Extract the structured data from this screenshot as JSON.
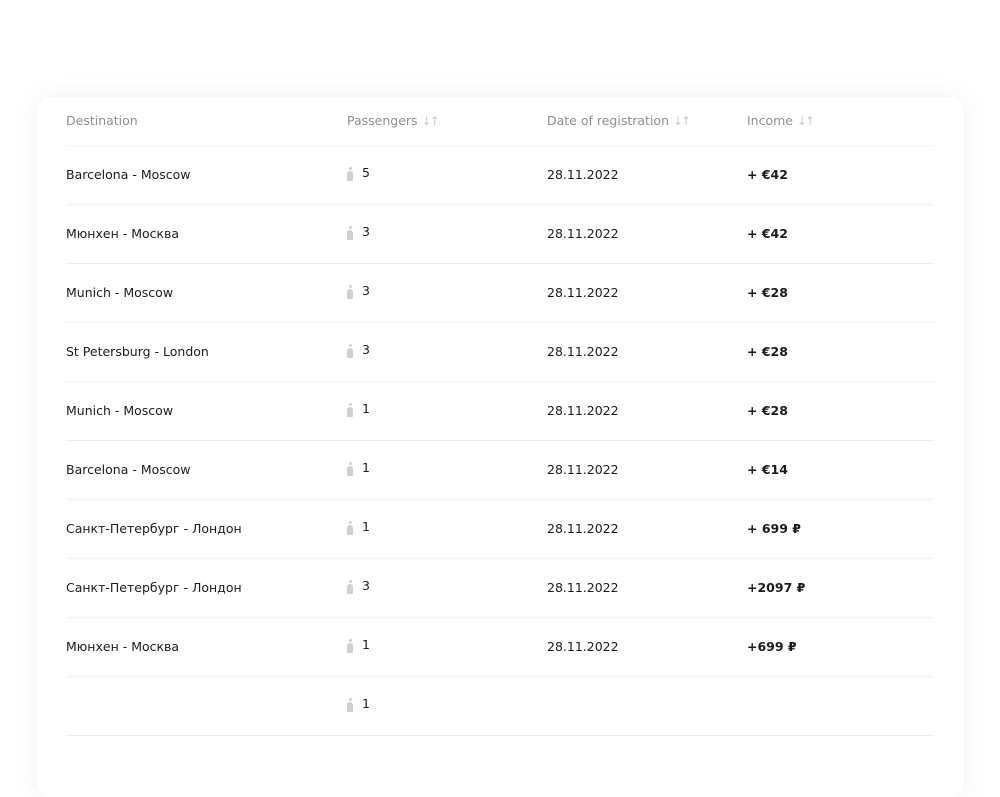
{
  "columns": [
    "Destination",
    "Passengers",
    "Date of registration",
    "Income"
  ],
  "rows": [
    {
      "destination": "Barcelona - Moscow",
      "passengers": "5",
      "date": "28.11.2022",
      "income": "+ €42"
    },
    {
      "destination": "Мюнхен - Москва",
      "passengers": "3",
      "date": "28.11.2022",
      "income": "+ €42"
    },
    {
      "destination": "Munich - Moscow",
      "passengers": "3",
      "date": "28.11.2022",
      "income": "+ €28"
    },
    {
      "destination": "St Petersburg - London",
      "passengers": "3",
      "date": "28.11.2022",
      "income": "+ €28"
    },
    {
      "destination": "Munich - Moscow",
      "passengers": "1",
      "date": "28.11.2022",
      "income": "+ €28"
    },
    {
      "destination": "Barcelona - Moscow",
      "passengers": "1",
      "date": "28.11.2022",
      "income": "+ €14"
    },
    {
      "destination": "Санкт-Петербург - Лондон",
      "passengers": "1",
      "date": "28.11.2022",
      "income": "+ 699 ₽"
    },
    {
      "destination": "Санкт-Петербург - Лондон",
      "passengers": "3",
      "date": "28.11.2022",
      "income": "+2097 ₽"
    },
    {
      "destination": "Мюнхен - Москва",
      "passengers": "1",
      "date": "28.11.2022",
      "income": "+699 ₽"
    },
    {
      "destination": "",
      "passengers": "1",
      "date": "",
      "income": ""
    }
  ]
}
